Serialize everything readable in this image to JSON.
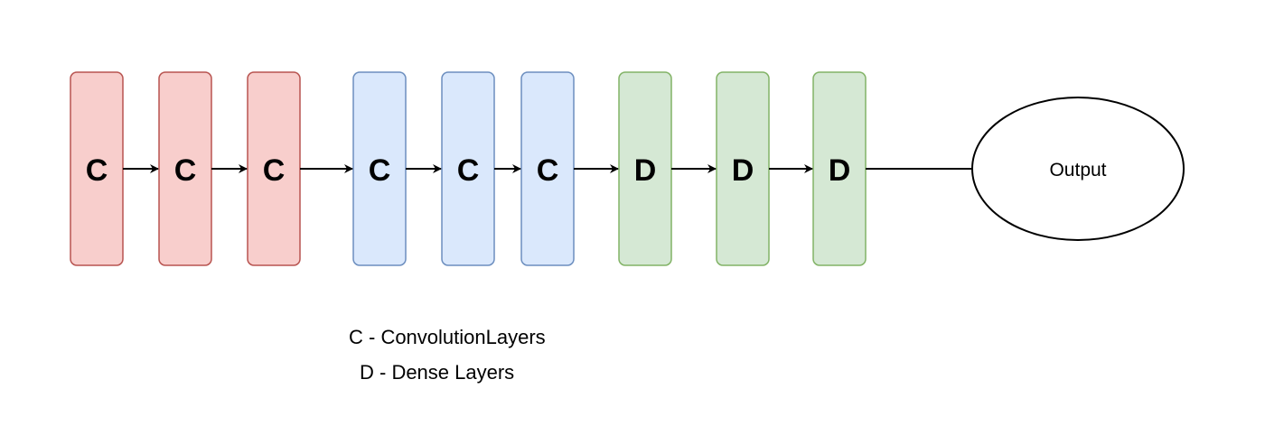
{
  "colors": {
    "conv_fill": "#f8cecc",
    "conv_stroke": "#b85450",
    "conv2_fill": "#dae8fc",
    "conv2_stroke": "#6c8ebf",
    "dense_fill": "#d5e8d4",
    "dense_stroke": "#82b366",
    "edge": "#000000"
  },
  "blocks": [
    {
      "label": "C",
      "group": "conv"
    },
    {
      "label": "C",
      "group": "conv"
    },
    {
      "label": "C",
      "group": "conv"
    },
    {
      "label": "C",
      "group": "conv2"
    },
    {
      "label": "C",
      "group": "conv2"
    },
    {
      "label": "C",
      "group": "conv2"
    },
    {
      "label": "D",
      "group": "dense"
    },
    {
      "label": "D",
      "group": "dense"
    },
    {
      "label": "D",
      "group": "dense"
    }
  ],
  "output": {
    "label": "Output"
  },
  "legend": {
    "conv": "C - ConvolutionLayers",
    "dense": "D - Dense Layers"
  }
}
